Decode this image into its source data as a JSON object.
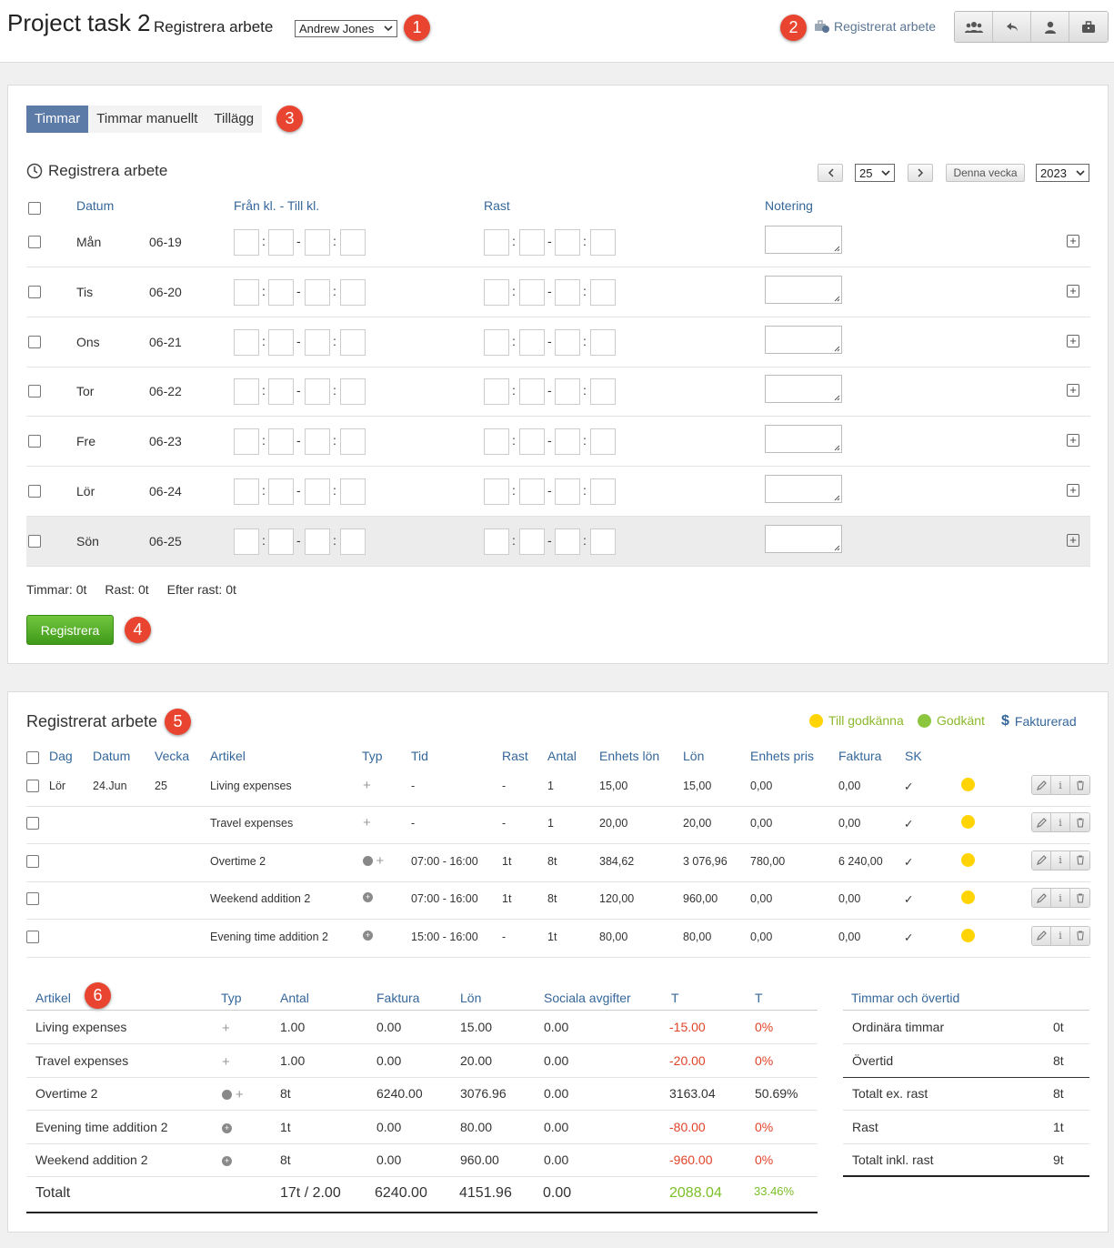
{
  "header": {
    "title": "Project task 2",
    "subtitle": "Registrera arbete",
    "user_select": "Andrew Jones",
    "registered_link": "Registrerat arbete",
    "badges": [
      "1",
      "2",
      "3",
      "4",
      "5",
      "6"
    ]
  },
  "tabs": [
    {
      "label": "Timmar",
      "active": true
    },
    {
      "label": "Timmar manuellt",
      "active": false
    },
    {
      "label": "Tillägg",
      "active": false
    }
  ],
  "register": {
    "title": "Registrera arbete",
    "week": "25",
    "this_week": "Denna vecka",
    "year": "2023",
    "headers": {
      "date": "Datum",
      "time": "Från kl. - Till kl.",
      "break": "Rast",
      "note": "Notering"
    },
    "days": [
      {
        "day": "Mån",
        "date": "06-19"
      },
      {
        "day": "Tis",
        "date": "06-20"
      },
      {
        "day": "Ons",
        "date": "06-21"
      },
      {
        "day": "Tor",
        "date": "06-22"
      },
      {
        "day": "Fre",
        "date": "06-23"
      },
      {
        "day": "Lör",
        "date": "06-24"
      },
      {
        "day": "Sön",
        "date": "06-25"
      }
    ],
    "summary": {
      "hours": "Timmar: 0t",
      "break": "Rast: 0t",
      "after_break": "Efter rast: 0t"
    },
    "button": "Registrera"
  },
  "registered": {
    "title": "Registrerat arbete",
    "legend": {
      "pending": "Till godkänna",
      "approved": "Godkänt",
      "invoiced": "Fakturerad",
      "pending_color": "#ffd400",
      "approved_color": "#8cc63f",
      "invoiced_color": "#35679a"
    },
    "headers": [
      "Dag",
      "Datum",
      "Vecka",
      "Artikel",
      "Typ",
      "Tid",
      "Rast",
      "Antal",
      "Enhets lön",
      "Lön",
      "Enhets pris",
      "Faktura",
      "SK"
    ],
    "rows": [
      {
        "dag": "Lör",
        "datum": "24.Jun",
        "vecka": "25",
        "artikel": "Living expenses",
        "typ": "plus",
        "tid": "-",
        "rast": "-",
        "antal": "1",
        "enhets_lon": "15,00",
        "lon": "15,00",
        "enhets_pris": "0,00",
        "faktura": "0,00"
      },
      {
        "dag": "",
        "datum": "",
        "vecka": "",
        "artikel": "Travel expenses",
        "typ": "plus",
        "tid": "-",
        "rast": "-",
        "antal": "1",
        "enhets_lon": "20,00",
        "lon": "20,00",
        "enhets_pris": "0,00",
        "faktura": "0,00"
      },
      {
        "dag": "",
        "datum": "",
        "vecka": "",
        "artikel": "Overtime 2",
        "typ": "clock-plus",
        "tid": "07:00 - 16:00",
        "rast": "1t",
        "antal": "8t",
        "enhets_lon": "384,62",
        "lon": "3 076,96",
        "enhets_pris": "780,00",
        "faktura": "6 240,00"
      },
      {
        "dag": "",
        "datum": "",
        "vecka": "",
        "artikel": "Weekend addition 2",
        "typ": "dot",
        "tid": "07:00 - 16:00",
        "rast": "1t",
        "antal": "8t",
        "enhets_lon": "120,00",
        "lon": "960,00",
        "enhets_pris": "0,00",
        "faktura": "0,00"
      },
      {
        "dag": "",
        "datum": "",
        "vecka": "",
        "artikel": "Evening time addition 2",
        "typ": "dot",
        "tid": "15:00 - 16:00",
        "rast": "-",
        "antal": "1t",
        "enhets_lon": "80,00",
        "lon": "80,00",
        "enhets_pris": "0,00",
        "faktura": "0,00"
      }
    ]
  },
  "summary_table": {
    "headers": [
      "Artikel",
      "Typ",
      "Antal",
      "Faktura",
      "Lön",
      "Sociala avgifter",
      "T",
      "T"
    ],
    "rows": [
      {
        "artikel": "Living expenses",
        "typ": "plus",
        "antal": "1.00",
        "faktura": "0.00",
        "lon": "15.00",
        "sociala": "0.00",
        "t1": "-15.00",
        "t2": "0%",
        "neg": true
      },
      {
        "artikel": "Travel expenses",
        "typ": "plus",
        "antal": "1.00",
        "faktura": "0.00",
        "lon": "20.00",
        "sociala": "0.00",
        "t1": "-20.00",
        "t2": "0%",
        "neg": true
      },
      {
        "artikel": "Overtime 2",
        "typ": "clock-plus",
        "antal": "8t",
        "faktura": "6240.00",
        "lon": "3076.96",
        "sociala": "0.00",
        "t1": "3163.04",
        "t2": "50.69%",
        "neg": false
      },
      {
        "artikel": "Evening time addition 2",
        "typ": "dot",
        "antal": "1t",
        "faktura": "0.00",
        "lon": "80.00",
        "sociala": "0.00",
        "t1": "-80.00",
        "t2": "0%",
        "neg": true
      },
      {
        "artikel": "Weekend addition 2",
        "typ": "dot",
        "antal": "8t",
        "faktura": "0.00",
        "lon": "960.00",
        "sociala": "0.00",
        "t1": "-960.00",
        "t2": "0%",
        "neg": true
      }
    ],
    "total": {
      "label": "Totalt",
      "antal": "17t / 2.00",
      "faktura": "6240.00",
      "lon": "4151.96",
      "sociala": "0.00",
      "t1": "2088.04",
      "t2": "33.46%"
    }
  },
  "hours_table": {
    "header": "Timmar och övertid",
    "rows": [
      {
        "label": "Ordinära timmar",
        "value": "0t"
      },
      {
        "label": "Övertid",
        "value": "8t"
      },
      {
        "label": "Totalt ex. rast",
        "value": "8t"
      },
      {
        "label": "Rast",
        "value": "1t"
      },
      {
        "label": "Totalt inkl. rast",
        "value": "9t"
      }
    ]
  }
}
